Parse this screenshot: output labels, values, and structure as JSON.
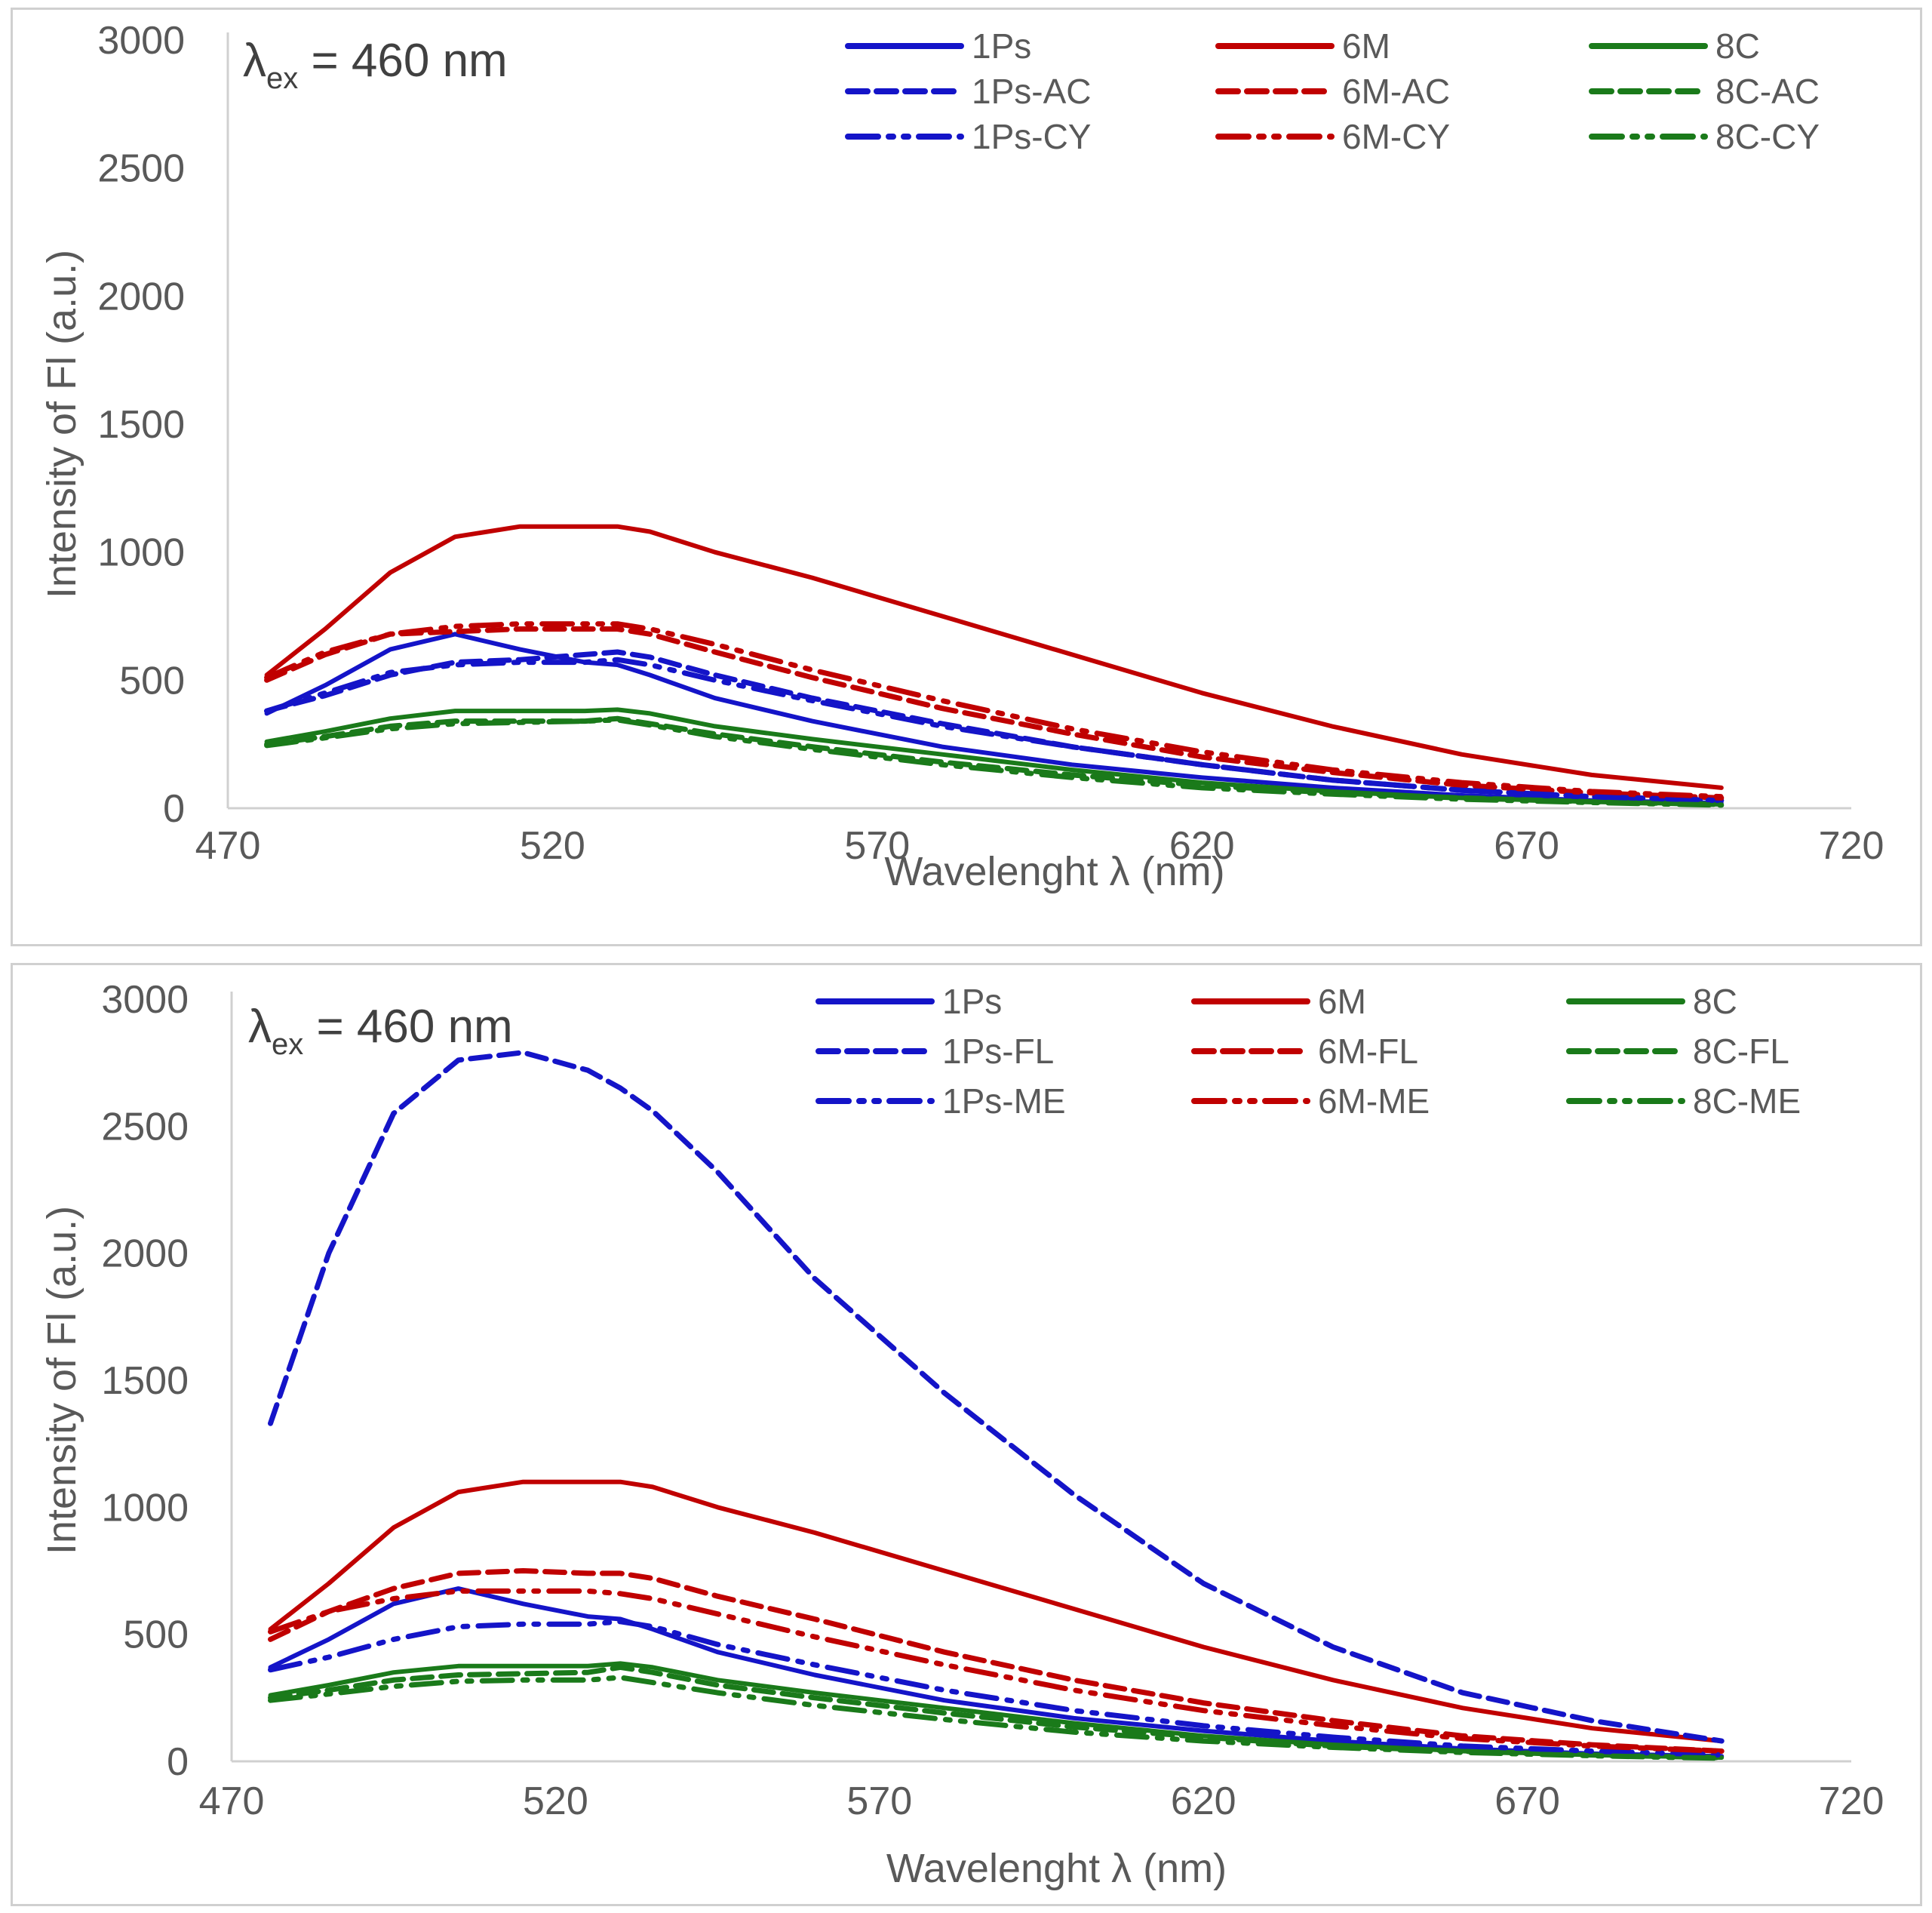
{
  "chart_data": [
    {
      "type": "line",
      "annotation": {
        "symbol": "λ",
        "subscript": "ex",
        "text": " = 460 nm"
      },
      "xlabel": "Wavelenght λ (nm)",
      "ylabel": "Intensity of Fl (a.u.)",
      "xlim": [
        470,
        720
      ],
      "ylim": [
        0,
        3000
      ],
      "xticks": [
        "470",
        "520",
        "570",
        "620",
        "670",
        "720"
      ],
      "yticks": [
        "0",
        "500",
        "1000",
        "1500",
        "2000",
        "2500",
        "3000"
      ],
      "legend_position": "top-right",
      "x": [
        476,
        485,
        495,
        505,
        515,
        525,
        530,
        535,
        545,
        560,
        580,
        600,
        620,
        640,
        660,
        680,
        700
      ],
      "series": [
        {
          "name": "1Ps",
          "color": "#1414c8",
          "dash": "solid",
          "values": [
            370,
            480,
            620,
            680,
            620,
            570,
            560,
            520,
            430,
            340,
            240,
            170,
            120,
            80,
            50,
            30,
            20
          ]
        },
        {
          "name": "6M",
          "color": "#c00000",
          "dash": "solid",
          "values": [
            520,
            700,
            920,
            1060,
            1100,
            1100,
            1100,
            1080,
            1000,
            900,
            750,
            600,
            450,
            320,
            210,
            130,
            80
          ]
        },
        {
          "name": "8C",
          "color": "#1a7a1a",
          "dash": "solid",
          "values": [
            260,
            300,
            350,
            380,
            380,
            380,
            385,
            370,
            320,
            270,
            210,
            150,
            100,
            65,
            40,
            25,
            15
          ]
        },
        {
          "name": "1Ps-AC",
          "color": "#1414c8",
          "dash": "dashed",
          "values": [
            380,
            440,
            520,
            570,
            580,
            600,
            610,
            590,
            520,
            430,
            330,
            240,
            170,
            110,
            70,
            45,
            30
          ]
        },
        {
          "name": "6M-AC",
          "color": "#c00000",
          "dash": "dashed",
          "values": [
            500,
            600,
            680,
            690,
            700,
            700,
            700,
            680,
            610,
            510,
            390,
            290,
            200,
            140,
            90,
            60,
            40
          ]
        },
        {
          "name": "8C-AC",
          "color": "#1a7a1a",
          "dash": "dashed",
          "values": [
            250,
            280,
            320,
            340,
            340,
            340,
            350,
            330,
            290,
            240,
            180,
            130,
            90,
            60,
            40,
            25,
            15
          ]
        },
        {
          "name": "1Ps-CY",
          "color": "#1414c8",
          "dash": "dashdotdot",
          "values": [
            380,
            450,
            530,
            560,
            570,
            570,
            580,
            560,
            500,
            420,
            320,
            240,
            170,
            110,
            70,
            45,
            30
          ]
        },
        {
          "name": "6M-CY",
          "color": "#c00000",
          "dash": "dashdotdot",
          "values": [
            510,
            610,
            680,
            710,
            720,
            720,
            720,
            700,
            640,
            540,
            420,
            310,
            220,
            150,
            100,
            65,
            45
          ]
        },
        {
          "name": "8C-CY",
          "color": "#1a7a1a",
          "dash": "dashdotdot",
          "values": [
            245,
            275,
            310,
            330,
            335,
            340,
            345,
            325,
            280,
            230,
            170,
            120,
            80,
            55,
            35,
            22,
            12
          ]
        }
      ]
    },
    {
      "type": "line",
      "annotation": {
        "symbol": "λ",
        "subscript": "ex",
        "text": " = 460 nm"
      },
      "xlabel": "Wavelenght λ (nm)",
      "ylabel": "Intensity of Fl (a.u.)",
      "xlim": [
        470,
        720
      ],
      "ylim": [
        0,
        3000
      ],
      "xticks": [
        "470",
        "520",
        "570",
        "620",
        "670",
        "720"
      ],
      "yticks": [
        "0",
        "500",
        "1000",
        "1500",
        "2000",
        "2500",
        "3000"
      ],
      "legend_position": "top-right",
      "x": [
        476,
        485,
        495,
        505,
        515,
        525,
        530,
        535,
        545,
        560,
        580,
        600,
        620,
        640,
        660,
        680,
        700
      ],
      "series": [
        {
          "name": "1Ps",
          "color": "#1414c8",
          "dash": "solid",
          "values": [
            370,
            480,
            620,
            680,
            620,
            570,
            560,
            520,
            430,
            340,
            240,
            170,
            120,
            80,
            50,
            30,
            20
          ]
        },
        {
          "name": "6M",
          "color": "#c00000",
          "dash": "solid",
          "values": [
            520,
            700,
            920,
            1060,
            1100,
            1100,
            1100,
            1080,
            1000,
            900,
            750,
            600,
            450,
            320,
            210,
            130,
            80
          ]
        },
        {
          "name": "8C",
          "color": "#1a7a1a",
          "dash": "solid",
          "values": [
            260,
            300,
            350,
            375,
            375,
            375,
            385,
            370,
            320,
            270,
            210,
            150,
            100,
            65,
            40,
            25,
            15
          ]
        },
        {
          "name": "1Ps-FL",
          "color": "#1414c8",
          "dash": "dashed",
          "values": [
            1330,
            2000,
            2550,
            2760,
            2790,
            2720,
            2650,
            2560,
            2320,
            1900,
            1450,
            1050,
            700,
            450,
            270,
            160,
            80
          ]
        },
        {
          "name": "6M-FL",
          "color": "#c00000",
          "dash": "dashed",
          "values": [
            480,
            590,
            680,
            740,
            750,
            740,
            740,
            720,
            650,
            560,
            430,
            320,
            230,
            160,
            100,
            65,
            40
          ]
        },
        {
          "name": "8C-FL",
          "color": "#1a7a1a",
          "dash": "dashed",
          "values": [
            250,
            280,
            320,
            340,
            345,
            350,
            370,
            350,
            300,
            250,
            190,
            135,
            95,
            60,
            40,
            25,
            15
          ]
        },
        {
          "name": "1Ps-ME",
          "color": "#1414c8",
          "dash": "dashdotdot",
          "values": [
            360,
            410,
            480,
            530,
            540,
            540,
            550,
            530,
            460,
            380,
            280,
            200,
            140,
            95,
            60,
            40,
            25
          ]
        },
        {
          "name": "6M-ME",
          "color": "#c00000",
          "dash": "dashdotdot",
          "values": [
            510,
            590,
            640,
            670,
            670,
            670,
            660,
            640,
            580,
            490,
            380,
            280,
            200,
            140,
            90,
            60,
            40
          ]
        },
        {
          "name": "8C-ME",
          "color": "#1a7a1a",
          "dash": "dashdotdot",
          "values": [
            240,
            265,
            295,
            315,
            320,
            320,
            330,
            310,
            270,
            220,
            165,
            115,
            80,
            55,
            35,
            22,
            12
          ]
        }
      ]
    }
  ]
}
